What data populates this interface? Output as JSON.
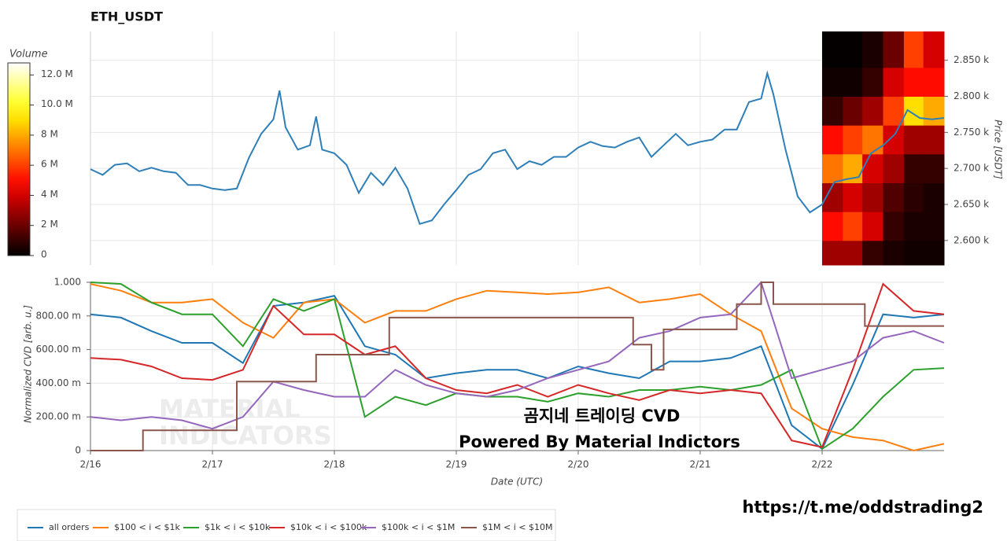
{
  "chart_data": [
    {
      "type": "line",
      "title": "ETH_USDT",
      "ylabel": "Price [USDT]",
      "x": [
        0,
        0.1,
        0.2,
        0.3,
        0.4,
        0.5,
        0.6,
        0.7,
        0.8,
        0.9,
        1.0,
        1.1,
        1.2,
        1.3,
        1.4,
        1.5,
        1.55,
        1.6,
        1.7,
        1.8,
        1.85,
        1.9,
        2.0,
        2.1,
        2.2,
        2.3,
        2.4,
        2.5,
        2.6,
        2.7,
        2.8,
        2.9,
        3.0,
        3.1,
        3.2,
        3.3,
        3.4,
        3.5,
        3.6,
        3.7,
        3.8,
        3.9,
        4.0,
        4.1,
        4.2,
        4.3,
        4.4,
        4.5,
        4.6,
        4.7,
        4.8,
        4.9,
        5.0,
        5.1,
        5.2,
        5.3,
        5.4,
        5.5,
        5.55,
        5.6,
        5.7,
        5.8,
        5.9,
        6.0,
        6.1,
        6.2,
        6.3,
        6.4,
        6.5,
        6.6,
        6.7,
        6.8,
        6.9,
        7.0
      ],
      "series": [
        {
          "color": "#2f7fb8",
          "values": [
            2699,
            2691,
            2705,
            2707,
            2696,
            2701,
            2696,
            2694,
            2677,
            2677,
            2672,
            2670,
            2672,
            2715,
            2748,
            2768,
            2808,
            2757,
            2726,
            2732,
            2772,
            2726,
            2721,
            2705,
            2666,
            2694,
            2677,
            2701,
            2672,
            2623,
            2628,
            2650,
            2670,
            2691,
            2699,
            2721,
            2726,
            2699,
            2710,
            2705,
            2716,
            2716,
            2729,
            2737,
            2731,
            2729,
            2737,
            2743,
            2716,
            2732,
            2748,
            2732,
            2737,
            2740,
            2754,
            2754,
            2792,
            2797,
            2832,
            2803,
            2726,
            2661,
            2639,
            2650,
            2681,
            2685,
            2688,
            2721,
            2732,
            2748,
            2781,
            2770,
            2768,
            2770
          ]
        }
      ],
      "xlim": [
        0,
        7
      ],
      "ylim": [
        2566,
        2890
      ],
      "yticks": [
        {
          "value": 2600,
          "label": "2.600 k"
        },
        {
          "value": 2650,
          "label": "2.650 k"
        },
        {
          "value": 2700,
          "label": "2.700 k"
        },
        {
          "value": 2750,
          "label": "2.750 k"
        },
        {
          "value": 2800,
          "label": "2.800 k"
        },
        {
          "value": 2850,
          "label": "2.850 k"
        }
      ],
      "grid": true,
      "heatmap": {
        "x_edges": [
          6.0,
          6.17,
          6.33,
          6.5,
          6.67,
          6.83,
          7.0
        ],
        "y_edges": [
          2566,
          2600,
          2640,
          2680,
          2720,
          2760,
          2800,
          2840,
          2890
        ],
        "values": [
          [
            3,
            3,
            1,
            0.5,
            0.3,
            0.3
          ],
          [
            5,
            6,
            4,
            1,
            0.5,
            0.5
          ],
          [
            3,
            4,
            3,
            1.5,
            0.8,
            0.5
          ],
          [
            7,
            8,
            4,
            3,
            1,
            1
          ],
          [
            5,
            6,
            7,
            4,
            3,
            3
          ],
          [
            1,
            2,
            3,
            6,
            9,
            8
          ],
          [
            0.3,
            0.3,
            1,
            4,
            5,
            5
          ],
          [
            0.1,
            0.1,
            0.5,
            2,
            6,
            4
          ]
        ]
      },
      "colorbar": {
        "title": "Volume",
        "clim": [
          0,
          12.8
        ],
        "ticks": [
          0,
          {
            "value": 2,
            "label": "2 M"
          },
          {
            "value": 4,
            "label": "4 M"
          },
          {
            "value": 6,
            "label": "6 M"
          },
          {
            "value": 8,
            "label": "8 M"
          },
          {
            "value": 10,
            "label": "10.0 M"
          },
          {
            "value": 12,
            "label": "12.0 M"
          }
        ]
      }
    },
    {
      "type": "line",
      "ylabel": "Normalized CVD [arb. u.]",
      "xlabel": "Date (UTC)",
      "x": [
        0,
        0.25,
        0.5,
        0.75,
        1,
        1.25,
        1.5,
        1.75,
        2,
        2.25,
        2.5,
        2.75,
        3,
        3.25,
        3.5,
        3.75,
        4,
        4.25,
        4.5,
        4.75,
        5,
        5.25,
        5.5,
        5.75,
        6,
        6.25,
        6.5,
        6.75,
        7
      ],
      "series": [
        {
          "name": "all orders",
          "color": "#1f77b4",
          "values": [
            0.81,
            0.79,
            0.71,
            0.64,
            0.64,
            0.52,
            0.86,
            0.88,
            0.92,
            0.62,
            0.57,
            0.43,
            0.46,
            0.48,
            0.48,
            0.43,
            0.5,
            0.46,
            0.43,
            0.53,
            0.53,
            0.55,
            0.62,
            0.15,
            0.01,
            0.39,
            0.81,
            0.79,
            0.81
          ]
        },
        {
          "name": "$100 < i < $1k",
          "color": "#ff7f0e",
          "values": [
            0.99,
            0.95,
            0.88,
            0.88,
            0.9,
            0.76,
            0.67,
            0.88,
            0.9,
            0.76,
            0.83,
            0.83,
            0.9,
            0.95,
            0.94,
            0.93,
            0.94,
            0.97,
            0.88,
            0.9,
            0.93,
            0.81,
            0.71,
            0.25,
            0.13,
            0.08,
            0.06,
            0.0,
            0.04
          ]
        },
        {
          "name": "$1k < i < $10k",
          "color": "#2ca02c",
          "values": [
            1.0,
            0.99,
            0.88,
            0.81,
            0.81,
            0.62,
            0.9,
            0.83,
            0.9,
            0.2,
            0.32,
            0.27,
            0.34,
            0.32,
            0.32,
            0.29,
            0.34,
            0.32,
            0.36,
            0.36,
            0.38,
            0.36,
            0.39,
            0.48,
            0.01,
            0.13,
            0.32,
            0.48,
            0.49
          ]
        },
        {
          "name": "$10k < i < $100k",
          "color": "#d62728",
          "values": [
            0.55,
            0.54,
            0.5,
            0.43,
            0.42,
            0.48,
            0.86,
            0.69,
            0.69,
            0.57,
            0.62,
            0.43,
            0.36,
            0.34,
            0.39,
            0.32,
            0.39,
            0.34,
            0.3,
            0.36,
            0.34,
            0.36,
            0.34,
            0.06,
            0.02,
            0.48,
            0.99,
            0.83,
            0.81
          ]
        },
        {
          "name": "$100k < i < $1M",
          "color": "#9467bd",
          "values": [
            0.2,
            0.18,
            0.2,
            0.18,
            0.13,
            0.2,
            0.41,
            0.36,
            0.32,
            0.32,
            0.48,
            0.39,
            0.34,
            0.32,
            0.36,
            0.43,
            0.48,
            0.53,
            0.67,
            0.71,
            0.79,
            0.81,
            1.0,
            0.43,
            0.48,
            0.53,
            0.67,
            0.71,
            0.64
          ]
        },
        {
          "name": "$1M < i < $10M",
          "color": "#8c564b",
          "x": [
            0,
            0.43,
            0.43,
            1.2,
            1.2,
            1.85,
            1.85,
            2.45,
            2.45,
            4.45,
            4.45,
            4.6,
            4.6,
            4.7,
            4.7,
            5.3,
            5.3,
            5.5,
            5.5,
            5.6,
            5.6,
            6.35,
            6.35,
            7
          ],
          "values": [
            0,
            0,
            0.12,
            0.12,
            0.41,
            0.41,
            0.57,
            0.57,
            0.79,
            0.79,
            0.63,
            0.63,
            0.48,
            0.48,
            0.72,
            0.72,
            0.87,
            0.87,
            1,
            1,
            0.87,
            0.87,
            0.74,
            0.74
          ]
        }
      ],
      "xlim": [
        0,
        7
      ],
      "xticks": [
        {
          "value": 0,
          "label": "2/16"
        },
        {
          "value": 1,
          "label": "2/17"
        },
        {
          "value": 2,
          "label": "2/18"
        },
        {
          "value": 3,
          "label": "2/19"
        },
        {
          "value": 4,
          "label": "2/20"
        },
        {
          "value": 5,
          "label": "2/21"
        },
        {
          "value": 6,
          "label": "2/22"
        }
      ],
      "ylim": [
        0,
        1
      ],
      "yticks": [
        0,
        {
          "value": 0.2,
          "label": "200.00 m"
        },
        {
          "value": 0.4,
          "label": "400.00 m"
        },
        {
          "value": 0.6,
          "label": "600.00 m"
        },
        {
          "value": 0.8,
          "label": "800.00 m"
        },
        {
          "value": 1,
          "label": "1.000"
        }
      ],
      "grid": true,
      "legend": "bottom"
    }
  ],
  "overlay": {
    "watermark": [
      "MATERIAL",
      "INDICATORS"
    ],
    "caption": "곰지네 트레이딩 CVD",
    "powered": "Powered By Material Indictors",
    "link": "https://t.me/oddstrading2"
  }
}
